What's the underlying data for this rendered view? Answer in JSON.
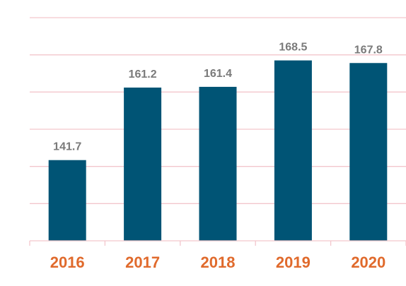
{
  "chart_data": {
    "type": "bar",
    "categories": [
      "2016",
      "2017",
      "2018",
      "2019",
      "2020"
    ],
    "values": [
      141.7,
      161.2,
      161.4,
      168.5,
      167.8
    ],
    "data_labels": [
      "141.7",
      "161.2",
      "161.4",
      "168.5",
      "167.8"
    ],
    "title": "",
    "xlabel": "",
    "ylabel": "",
    "ylim": [
      120,
      180
    ],
    "grid": true,
    "y_axis_visible": false,
    "colors": {
      "bar": "#005475",
      "value_label": "#7a7a7a",
      "category_label": "#e06a2c",
      "grid": "#f3c6cc"
    }
  }
}
